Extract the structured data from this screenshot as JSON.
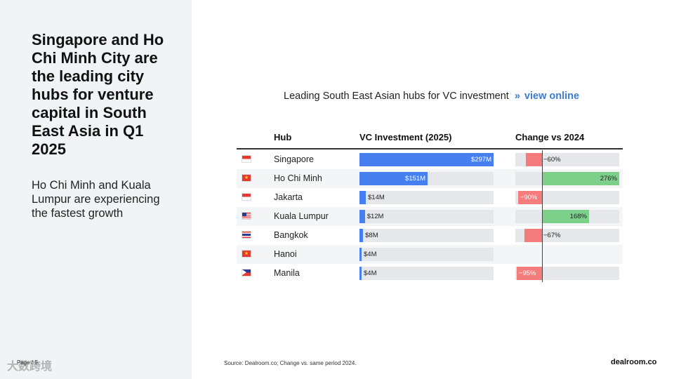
{
  "slide": {
    "headline": "Singapore and Ho Chi Minh City are the leading city hubs for venture capital in South East Asia in Q1 2025",
    "subtext": "Ho Chi Minh and Kuala Lumpur are experiencing the fastest growth",
    "page_label": "Page / 5",
    "watermark": "大数跨境",
    "source": "Source:  Dealroom.co; Change vs. same period 2024.",
    "brand": "dealroom.co"
  },
  "chart_data": {
    "type": "table",
    "title": "Leading South East Asian hubs for VC investment",
    "link_arrows": "»",
    "link_text": "view online",
    "columns": [
      "Hub",
      "VC Investment (2025)",
      "Change vs 2024"
    ],
    "vc_max": 297,
    "change_range": [
      -100,
      300
    ],
    "rows": [
      {
        "hub": "Singapore",
        "flag": "SG",
        "vc_value": 297,
        "vc_label": "$297M",
        "change": -60,
        "change_label": "−60%"
      },
      {
        "hub": "Ho Chi Minh",
        "flag": "VN",
        "vc_value": 151,
        "vc_label": "$151M",
        "change": 276,
        "change_label": "276%"
      },
      {
        "hub": "Jakarta",
        "flag": "ID",
        "vc_value": 14,
        "vc_label": "$14M",
        "change": -90,
        "change_label": "−90%"
      },
      {
        "hub": "Kuala Lumpur",
        "flag": "MY",
        "vc_value": 12,
        "vc_label": "$12M",
        "change": 168,
        "change_label": "168%"
      },
      {
        "hub": "Bangkok",
        "flag": "TH",
        "vc_value": 8,
        "vc_label": "$8M",
        "change": -67,
        "change_label": "−67%"
      },
      {
        "hub": "Hanoi",
        "flag": "VN",
        "vc_value": 4,
        "vc_label": "$4M",
        "change": null,
        "change_label": ""
      },
      {
        "hub": "Manila",
        "flag": "PH",
        "vc_value": 4,
        "vc_label": "$4M",
        "change": -95,
        "change_label": "−95%"
      }
    ],
    "colors": {
      "vc_bar": "#4680f0",
      "positive": "#7dd08a",
      "negative": "#f47c7c",
      "track": "#e6e7ea"
    }
  }
}
